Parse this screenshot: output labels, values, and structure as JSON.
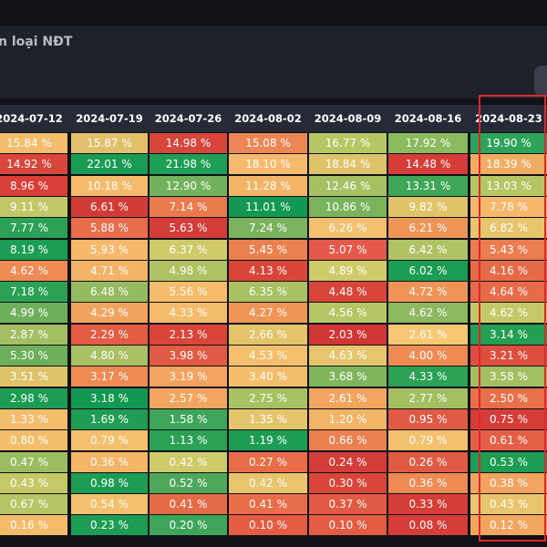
{
  "title": "n loại NĐT",
  "columns": [
    "2024-07-12",
    "2024-07-19",
    "2024-07-26",
    "2024-08-02",
    "2024-08-09",
    "2024-08-16",
    "2024-08-23"
  ],
  "rows": [
    [
      {
        "v": "15.84 %",
        "c": "#f4bd6c"
      },
      {
        "v": "15.87 %",
        "c": "#e2c06b"
      },
      {
        "v": "14.98 %",
        "c": "#d7463a"
      },
      {
        "v": "15.08 %",
        "c": "#ec8654"
      },
      {
        "v": "16.77 %",
        "c": "#b7c764"
      },
      {
        "v": "17.92 %",
        "c": "#8bba5f"
      },
      {
        "v": "19.90 %",
        "c": "#2ea35a"
      }
    ],
    [
      {
        "v": "14.92 %",
        "c": "#d9463b"
      },
      {
        "v": "22.01 %",
        "c": "#1b9c55"
      },
      {
        "v": "21.98 %",
        "c": "#1f9e56"
      },
      {
        "v": "18.10 %",
        "c": "#f7ba6d"
      },
      {
        "v": "18.84 %",
        "c": "#dec36a"
      },
      {
        "v": "14.48 %",
        "c": "#d63c38"
      },
      {
        "v": "18.39 %",
        "c": "#f0ad62"
      }
    ],
    [
      {
        "v": "8.96 %",
        "c": "#d93f38"
      },
      {
        "v": "10.18 %",
        "c": "#f3bb6b"
      },
      {
        "v": "12.90 %",
        "c": "#73b25c"
      },
      {
        "v": "11.28 %",
        "c": "#f2b467"
      },
      {
        "v": "12.46 %",
        "c": "#a6c063"
      },
      {
        "v": "13.31 %",
        "c": "#3fa657"
      },
      {
        "v": "13.03 %",
        "c": "#b5c664"
      }
    ],
    [
      {
        "v": "9.11 %",
        "c": "#c3c867"
      },
      {
        "v": "6.61 %",
        "c": "#d23c37"
      },
      {
        "v": "7.14 %",
        "c": "#ea7a4c"
      },
      {
        "v": "11.01 %",
        "c": "#129850"
      },
      {
        "v": "10.86 %",
        "c": "#7bb35c"
      },
      {
        "v": "9.82 %",
        "c": "#e0c46a"
      },
      {
        "v": "7.78 %",
        "c": "#f6b86a"
      }
    ],
    [
      {
        "v": "7.77 %",
        "c": "#2aa155"
      },
      {
        "v": "5.88 %",
        "c": "#e96d4a"
      },
      {
        "v": "5.63 %",
        "c": "#d43c38"
      },
      {
        "v": "7.24 %",
        "c": "#7bb35c"
      },
      {
        "v": "6.26 %",
        "c": "#f3c06f"
      },
      {
        "v": "6.21 %",
        "c": "#ee9556"
      },
      {
        "v": "6.82 %",
        "c": "#e7c56c"
      }
    ],
    [
      {
        "v": "8.19 %",
        "c": "#1b9d53"
      },
      {
        "v": "5.93 %",
        "c": "#f6b86a"
      },
      {
        "v": "6.37 %",
        "c": "#cfcb69"
      },
      {
        "v": "5.45 %",
        "c": "#ec8150"
      },
      {
        "v": "5.07 %",
        "c": "#e4594a"
      },
      {
        "v": "6.42 %",
        "c": "#afc364"
      },
      {
        "v": "5.43 %",
        "c": "#eb7d50"
      }
    ],
    [
      {
        "v": "4.62 %",
        "c": "#ee8a52"
      },
      {
        "v": "4.71 %",
        "c": "#f3b367"
      },
      {
        "v": "4.98 %",
        "c": "#aec263"
      },
      {
        "v": "4.13 %",
        "c": "#d94539"
      },
      {
        "v": "4.89 %",
        "c": "#cfcb69"
      },
      {
        "v": "6.02 %",
        "c": "#1a9d52"
      },
      {
        "v": "4.16 %",
        "c": "#e56b47"
      }
    ],
    [
      {
        "v": "7.18 %",
        "c": "#2aa155"
      },
      {
        "v": "6.48 %",
        "c": "#94bb60"
      },
      {
        "v": "5.56 %",
        "c": "#f7bb6c"
      },
      {
        "v": "6.35 %",
        "c": "#a9c163"
      },
      {
        "v": "4.48 %",
        "c": "#d94539"
      },
      {
        "v": "4.72 %",
        "c": "#ef9456"
      },
      {
        "v": "4.64 %",
        "c": "#e86b48"
      }
    ],
    [
      {
        "v": "4.99 %",
        "c": "#6eaf5c"
      },
      {
        "v": "4.29 %",
        "c": "#f0a35d"
      },
      {
        "v": "4.33 %",
        "c": "#f3bc6b"
      },
      {
        "v": "4.27 %",
        "c": "#ee9556"
      },
      {
        "v": "4.56 %",
        "c": "#b7c664"
      },
      {
        "v": "4.62 %",
        "c": "#8db85f"
      },
      {
        "v": "4.62 %",
        "c": "#c5c867"
      }
    ],
    [
      {
        "v": "2.87 %",
        "c": "#a3bf62"
      },
      {
        "v": "2.29 %",
        "c": "#e45c44"
      },
      {
        "v": "2.13 %",
        "c": "#d94539"
      },
      {
        "v": "2.66 %",
        "c": "#e3c46b"
      },
      {
        "v": "2.03 %",
        "c": "#d13634"
      },
      {
        "v": "2.61 %",
        "c": "#f6c873"
      },
      {
        "v": "3.14 %",
        "c": "#239e53"
      }
    ],
    [
      {
        "v": "5.30 %",
        "c": "#6eaf5c"
      },
      {
        "v": "4.80 %",
        "c": "#a9c163"
      },
      {
        "v": "3.98 %",
        "c": "#e05a44"
      },
      {
        "v": "4.53 %",
        "c": "#f4be6d"
      },
      {
        "v": "4.63 %",
        "c": "#e7c56c"
      },
      {
        "v": "4.00 %",
        "c": "#ee8b53"
      },
      {
        "v": "3.21 %",
        "c": "#de4e3f"
      }
    ],
    [
      {
        "v": "3.51 %",
        "c": "#dec36a"
      },
      {
        "v": "3.17 %",
        "c": "#ee8a52"
      },
      {
        "v": "3.19 %",
        "c": "#f2a35f"
      },
      {
        "v": "3.40 %",
        "c": "#f3be6c"
      },
      {
        "v": "3.68 %",
        "c": "#80b55d"
      },
      {
        "v": "4.33 %",
        "c": "#2aa155"
      },
      {
        "v": "3.58 %",
        "c": "#a3bf62"
      }
    ],
    [
      {
        "v": "2.98 %",
        "c": "#1c9c53"
      },
      {
        "v": "3.18 %",
        "c": "#139851"
      },
      {
        "v": "2.57 %",
        "c": "#f1a55f"
      },
      {
        "v": "2.75 %",
        "c": "#a9c163"
      },
      {
        "v": "2.61 %",
        "c": "#f1a55f"
      },
      {
        "v": "2.77 %",
        "c": "#a3bf62"
      },
      {
        "v": "2.50 %",
        "c": "#e8704a"
      }
    ],
    [
      {
        "v": "1.33 %",
        "c": "#f4bd6c"
      },
      {
        "v": "1.69 %",
        "c": "#1f9d54"
      },
      {
        "v": "1.58 %",
        "c": "#3ea65a"
      },
      {
        "v": "1.35 %",
        "c": "#e5c56c"
      },
      {
        "v": "1.20 %",
        "c": "#f2b467"
      },
      {
        "v": "0.95 %",
        "c": "#e05a44"
      },
      {
        "v": "0.75 %",
        "c": "#d63c38"
      }
    ],
    [
      {
        "v": "0.80 %",
        "c": "#f3bd6c"
      },
      {
        "v": "0.79 %",
        "c": "#f4c06d"
      },
      {
        "v": "1.13 %",
        "c": "#2aa155"
      },
      {
        "v": "1.19 %",
        "c": "#1d9c53"
      },
      {
        "v": "0.66 %",
        "c": "#eb8050"
      },
      {
        "v": "0.79 %",
        "c": "#f3c06d"
      },
      {
        "v": "0.61 %",
        "c": "#e55f46"
      }
    ],
    [
      {
        "v": "0.47 %",
        "c": "#9abd61"
      },
      {
        "v": "0.36 %",
        "c": "#f4b567"
      },
      {
        "v": "0.42 %",
        "c": "#cfcb69"
      },
      {
        "v": "0.27 %",
        "c": "#e86d48"
      },
      {
        "v": "0.24 %",
        "c": "#d43d38"
      },
      {
        "v": "0.26 %",
        "c": "#e05a44"
      },
      {
        "v": "0.53 %",
        "c": "#1d9c53"
      }
    ],
    [
      {
        "v": "0.43 %",
        "c": "#c5c867"
      },
      {
        "v": "0.98 %",
        "c": "#1d9c53"
      },
      {
        "v": "0.52 %",
        "c": "#4ea85b"
      },
      {
        "v": "0.42 %",
        "c": "#e8c56c"
      },
      {
        "v": "0.30 %",
        "c": "#d94539"
      },
      {
        "v": "0.36 %",
        "c": "#ee8a52"
      },
      {
        "v": "0.38 %",
        "c": "#f2a35f"
      }
    ],
    [
      {
        "v": "0.67 %",
        "c": "#b5c664"
      },
      {
        "v": "0.54 %",
        "c": "#f4c06d"
      },
      {
        "v": "0.41 %",
        "c": "#e56b47"
      },
      {
        "v": "0.41 %",
        "c": "#e86d48"
      },
      {
        "v": "0.37 %",
        "c": "#e05a44"
      },
      {
        "v": "0.33 %",
        "c": "#d43d38"
      },
      {
        "v": "0.43 %",
        "c": "#e8c56c"
      }
    ],
    [
      {
        "v": "0.16 %",
        "c": "#f4bb6a"
      },
      {
        "v": "0.23 %",
        "c": "#1d9c53"
      },
      {
        "v": "0.20 %",
        "c": "#3ea65a"
      },
      {
        "v": "0.10 %",
        "c": "#e45c44"
      },
      {
        "v": "0.10 %",
        "c": "#e45c44"
      },
      {
        "v": "0.08 %",
        "c": "#d63c38"
      },
      {
        "v": "0.12 %",
        "c": "#f1a55f"
      }
    ]
  ],
  "highlight_color": "#e0262d"
}
